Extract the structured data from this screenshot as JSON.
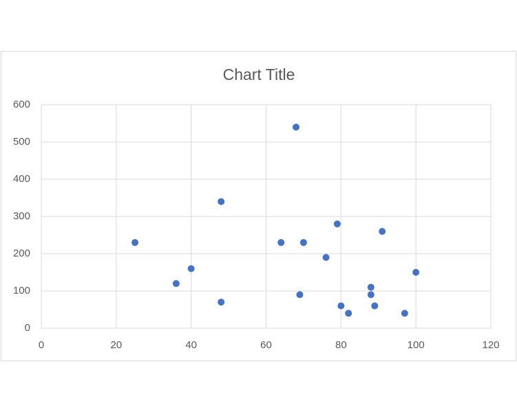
{
  "chart_data": {
    "type": "scatter",
    "title": "Chart Title",
    "series": [
      {
        "color": "#4472c4",
        "x": [
          25,
          36,
          40,
          48,
          48,
          64,
          68,
          69,
          70,
          76,
          79,
          80,
          82,
          88,
          88,
          89,
          91,
          97,
          100
        ],
        "values": [
          230,
          120,
          160,
          340,
          70,
          230,
          540,
          90,
          230,
          190,
          280,
          60,
          40,
          110,
          90,
          60,
          260,
          40,
          150
        ]
      }
    ],
    "xlim": [
      0,
      120
    ],
    "xticks": [
      0,
      20,
      40,
      60,
      80,
      100,
      120
    ],
    "ylim": [
      0,
      600
    ],
    "yticks": [
      0,
      100,
      200,
      300,
      400,
      500,
      600
    ],
    "grid": true
  }
}
